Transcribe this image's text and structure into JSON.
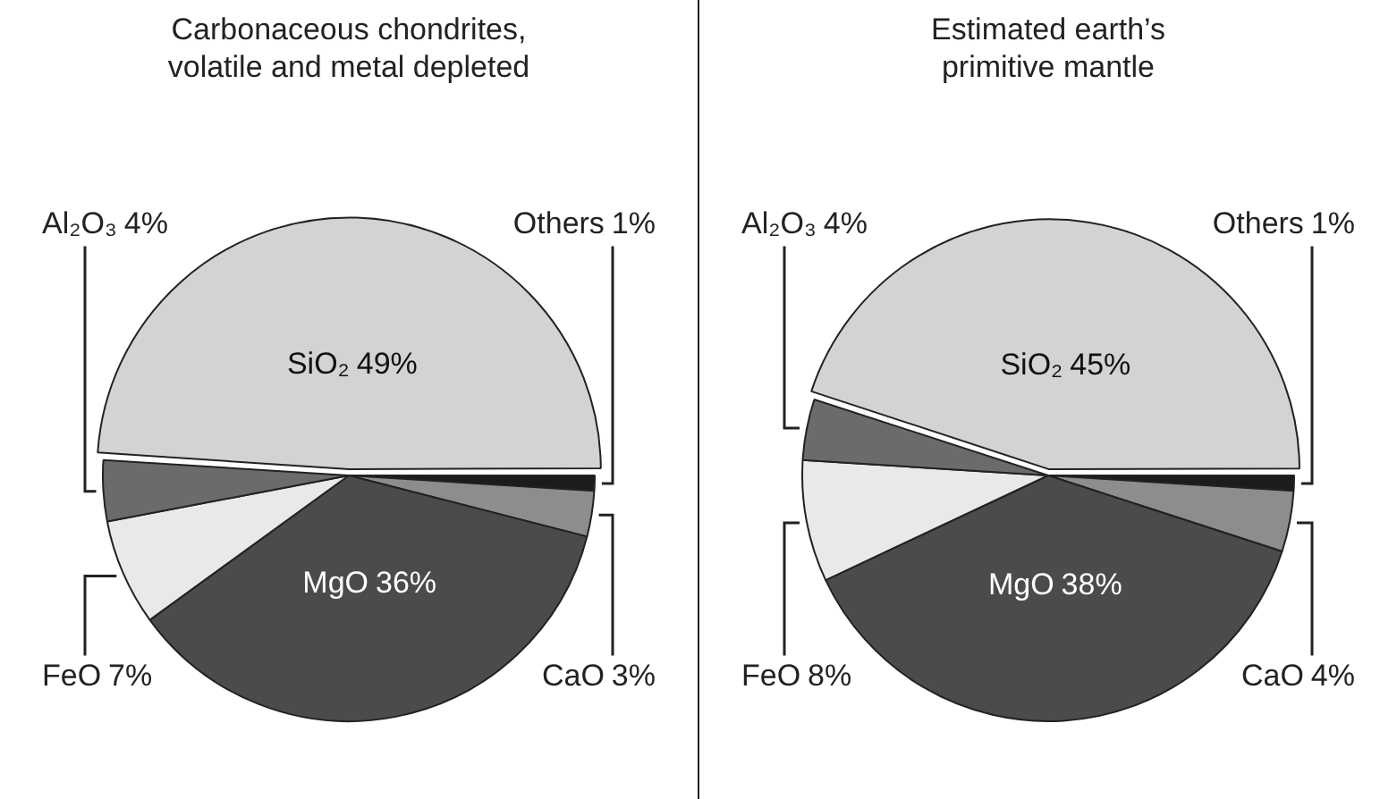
{
  "chart_data": [
    {
      "type": "pie",
      "title": "Carbonaceous chondrites,\nvolatile and metal depleted",
      "categories": [
        "SiO₂",
        "Others",
        "CaO",
        "MgO",
        "FeO",
        "Al₂O₃"
      ],
      "values": [
        49,
        1,
        3,
        36,
        7,
        4
      ],
      "colors": [
        "#d3d3d3",
        "#1c1c1c",
        "#8d8d8d",
        "#4b4b4b",
        "#e9e9e9",
        "#6b6b6b"
      ],
      "value_labels": [
        "49%",
        "1%",
        "3%",
        "36%",
        "7%",
        "4%"
      ]
    },
    {
      "type": "pie",
      "title": "Estimated earth’s\nprimitive mantle",
      "categories": [
        "SiO₂",
        "Others",
        "CaO",
        "MgO",
        "FeO",
        "Al₂O₃"
      ],
      "values": [
        45,
        1,
        4,
        38,
        8,
        4
      ],
      "colors": [
        "#d3d3d3",
        "#1c1c1c",
        "#8d8d8d",
        "#4b4b4b",
        "#e9e9e9",
        "#6b6b6b"
      ],
      "value_labels": [
        "45%",
        "1%",
        "4%",
        "38%",
        "8%",
        "4%"
      ]
    }
  ]
}
